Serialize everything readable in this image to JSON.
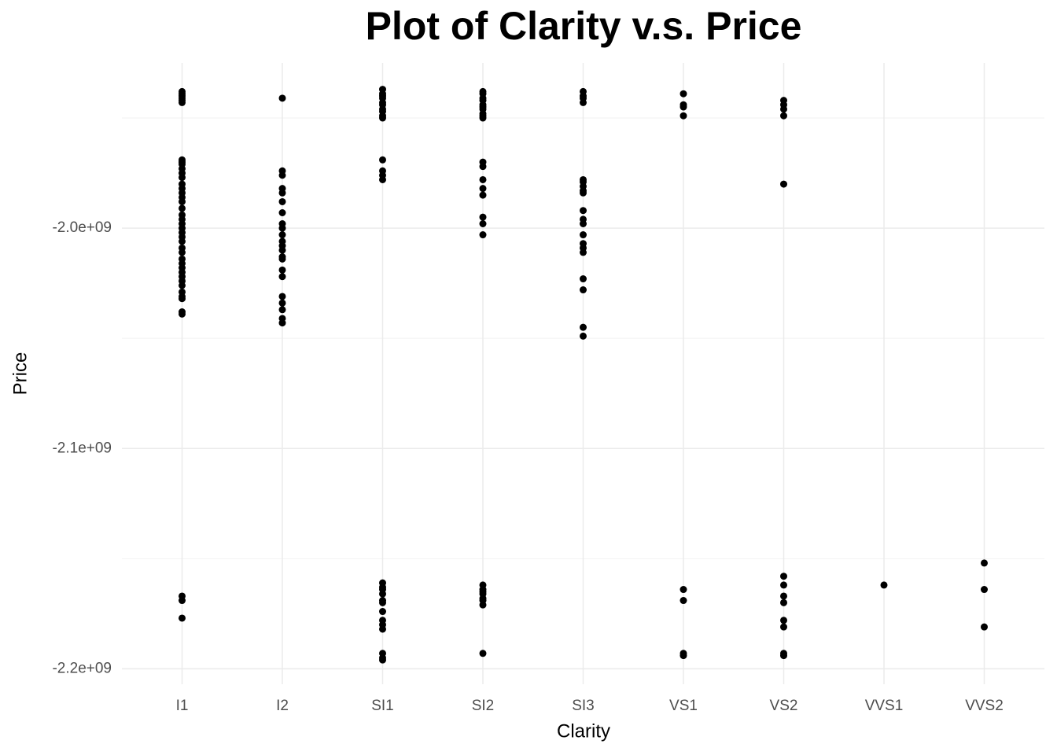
{
  "chart_data": {
    "type": "strip",
    "title": "Plot of Clarity v.s. Price",
    "x_label": "Clarity",
    "y_label": "Price",
    "categories": [
      "I1",
      "I2",
      "SI1",
      "SI2",
      "SI3",
      "VS1",
      "VS2",
      "VVS1",
      "VVS2"
    ],
    "ylim": [
      -2207000000,
      -1925000000
    ],
    "yticks": [
      {
        "value": -2200000000,
        "label": "-2.2e+09"
      },
      {
        "value": -2100000000,
        "label": "-2.1e+09"
      },
      {
        "value": -2000000000,
        "label": "-2.0e+09"
      }
    ],
    "minor_yticks": [
      -2150000000,
      -2050000000,
      -1950000000
    ],
    "grid": true,
    "series": [
      {
        "color": "#000000",
        "x": [
          "I1",
          "I1",
          "I1",
          "I1",
          "I1",
          "I1",
          "I1",
          "I1",
          "I1",
          "I1",
          "I1",
          "I1",
          "I1",
          "I1",
          "I1",
          "I1",
          "I1",
          "I1",
          "I1",
          "I1",
          "I1",
          "I1",
          "I1",
          "I1",
          "I1",
          "I1",
          "I1",
          "I1",
          "I1",
          "I1",
          "I1",
          "I1",
          "I1",
          "I1",
          "I1",
          "I1",
          "I1",
          "I1",
          "I1",
          "I1",
          "I1",
          "I1",
          "I2",
          "I2",
          "I2",
          "I2",
          "I2",
          "I2",
          "I2",
          "I2",
          "I2",
          "I2",
          "I2",
          "I2",
          "I2",
          "I2",
          "I2",
          "I2",
          "I2",
          "I2",
          "I2",
          "I2",
          "I2",
          "I2",
          "SI1",
          "SI1",
          "SI1",
          "SI1",
          "SI1",
          "SI1",
          "SI1",
          "SI1",
          "SI1",
          "SI1",
          "SI1",
          "SI1",
          "SI1",
          "SI1",
          "SI1",
          "SI1",
          "SI1",
          "SI1",
          "SI1",
          "SI1",
          "SI1",
          "SI1",
          "SI1",
          "SI1",
          "SI1",
          "SI1",
          "SI1",
          "SI2",
          "SI2",
          "SI2",
          "SI2",
          "SI2",
          "SI2",
          "SI2",
          "SI2",
          "SI2",
          "SI2",
          "SI2",
          "SI2",
          "SI2",
          "SI2",
          "SI2",
          "SI2",
          "SI2",
          "SI2",
          "SI2",
          "SI2",
          "SI2",
          "SI2",
          "SI2",
          "SI2",
          "SI2",
          "SI2",
          "SI3",
          "SI3",
          "SI3",
          "SI3",
          "SI3",
          "SI3",
          "SI3",
          "SI3",
          "SI3",
          "SI3",
          "SI3",
          "SI3",
          "SI3",
          "SI3",
          "SI3",
          "SI3",
          "SI3",
          "SI3",
          "SI3",
          "SI3",
          "VS1",
          "VS1",
          "VS1",
          "VS1",
          "VS1",
          "VS1",
          "VS1",
          "VS1",
          "VS2",
          "VS2",
          "VS2",
          "VS2",
          "VS2",
          "VS2",
          "VS2",
          "VS2",
          "VS2",
          "VS2",
          "VS2",
          "VS2",
          "VS2",
          "VVS1",
          "VVS2",
          "VVS2",
          "VVS2"
        ],
        "values": [
          -1938000000,
          -1939000000,
          -1940000000,
          -1941000000,
          -1942000000,
          -1943000000,
          -1969000000,
          -1970000000,
          -1971000000,
          -1973000000,
          -1975000000,
          -1977000000,
          -1980000000,
          -1982000000,
          -1984000000,
          -1986000000,
          -1988000000,
          -1991000000,
          -1994000000,
          -1996000000,
          -1998000000,
          -2000000000,
          -2002000000,
          -2004000000,
          -2006000000,
          -2009000000,
          -2011000000,
          -2014000000,
          -2016000000,
          -2018000000,
          -2020000000,
          -2022000000,
          -2024000000,
          -2026000000,
          -2029000000,
          -2031000000,
          -2032000000,
          -2038000000,
          -2039000000,
          -2167000000,
          -2169000000,
          -2177000000,
          -1941000000,
          -1974000000,
          -1976000000,
          -1982000000,
          -1984000000,
          -1988000000,
          -1993000000,
          -1998000000,
          -2000000000,
          -2003000000,
          -2006000000,
          -2008000000,
          -2010000000,
          -2013000000,
          -2014000000,
          -2019000000,
          -2022000000,
          -2031000000,
          -2034000000,
          -2037000000,
          -2041000000,
          -2043000000,
          -1937000000,
          -1939000000,
          -1940000000,
          -1941000000,
          -1943000000,
          -1944000000,
          -1946000000,
          -1947000000,
          -1949000000,
          -1950000000,
          -1969000000,
          -1974000000,
          -1976000000,
          -1978000000,
          -2161000000,
          -2163000000,
          -2164000000,
          -2166000000,
          -2169000000,
          -2170000000,
          -2174000000,
          -2178000000,
          -2180000000,
          -2182000000,
          -2193000000,
          -2195000000,
          -2196000000,
          -1938000000,
          -1939000000,
          -1941000000,
          -1942000000,
          -1944000000,
          -1945000000,
          -1946000000,
          -1948000000,
          -1949000000,
          -1950000000,
          -1970000000,
          -1972000000,
          -1978000000,
          -1982000000,
          -1985000000,
          -1995000000,
          -1998000000,
          -2003000000,
          -2162000000,
          -2164000000,
          -2165000000,
          -2166000000,
          -2168000000,
          -2169000000,
          -2171000000,
          -2193000000,
          -1938000000,
          -1940000000,
          -1941000000,
          -1943000000,
          -1978000000,
          -1979000000,
          -1981000000,
          -1983000000,
          -1984000000,
          -1992000000,
          -1996000000,
          -1998000000,
          -2003000000,
          -2007000000,
          -2009000000,
          -2011000000,
          -2023000000,
          -2028000000,
          -2045000000,
          -2049000000,
          -1939000000,
          -1944000000,
          -1945000000,
          -1949000000,
          -2164000000,
          -2169000000,
          -2193000000,
          -2194000000,
          -1942000000,
          -1944000000,
          -1946000000,
          -1949000000,
          -1980000000,
          -2158000000,
          -2162000000,
          -2167000000,
          -2170000000,
          -2178000000,
          -2181000000,
          -2193000000,
          -2194000000,
          -2162000000,
          -2152000000,
          -2164000000,
          -2181000000
        ]
      }
    ]
  }
}
